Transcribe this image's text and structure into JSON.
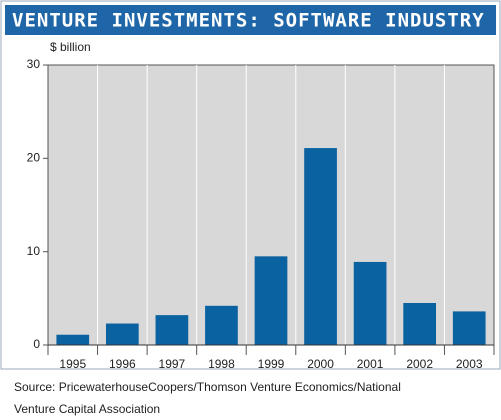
{
  "chart_data": {
    "type": "bar",
    "title": "VENTURE INVESTMENTS: SOFTWARE INDUSTRY",
    "y_label": "$ billion",
    "categories": [
      "1995",
      "1996",
      "1997",
      "1998",
      "1999",
      "2000",
      "2001",
      "2002",
      "2003"
    ],
    "values": [
      1.1,
      2.3,
      3.2,
      4.2,
      9.5,
      21.1,
      8.9,
      4.5,
      3.6
    ],
    "color": "#0b62a0",
    "ylim": [
      0,
      30
    ],
    "yticks": [
      0,
      10,
      20,
      30
    ],
    "source": [
      "Source:  PricewaterhouseCoopers/Thomson Venture Economics/National",
      "Venture Capital Association"
    ]
  }
}
